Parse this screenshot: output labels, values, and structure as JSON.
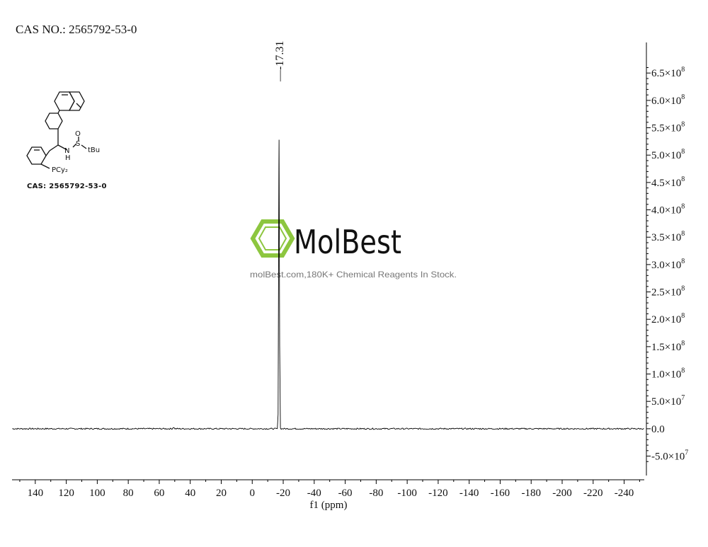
{
  "header": {
    "cas_text": "CAS NO.: 2565792-53-0"
  },
  "structure": {
    "caption": "CAS: 2565792-53-0",
    "labels": {
      "oxygen": "O",
      "sulfur": "S",
      "nh": "N",
      "h": "H",
      "tbu": "tBu",
      "phosphine": "PCy₂"
    }
  },
  "watermark": {
    "brand": "MolBest",
    "tagline": "molBest.com,180K+ Chemical Reagents In Stock.",
    "color": "#8dc63f"
  },
  "chart_data": {
    "type": "line",
    "xlabel": "f1 (ppm)",
    "x_reversed": true,
    "xlim": [
      155,
      -253
    ],
    "x_ticks": [
      140,
      120,
      100,
      80,
      60,
      40,
      20,
      0,
      -20,
      -40,
      -60,
      -80,
      -100,
      -120,
      -140,
      -160,
      -180,
      -200,
      -220,
      -240
    ],
    "ylim": [
      -70000000,
      680000000
    ],
    "y_ticks": [
      {
        "value": 650000000,
        "mantissa": "6.5",
        "exp": "8"
      },
      {
        "value": 600000000,
        "mantissa": "6.0",
        "exp": "8"
      },
      {
        "value": 550000000,
        "mantissa": "5.5",
        "exp": "8"
      },
      {
        "value": 500000000,
        "mantissa": "5.0",
        "exp": "8"
      },
      {
        "value": 450000000,
        "mantissa": "4.5",
        "exp": "8"
      },
      {
        "value": 400000000,
        "mantissa": "4.0",
        "exp": "8"
      },
      {
        "value": 350000000,
        "mantissa": "3.5",
        "exp": "8"
      },
      {
        "value": 300000000,
        "mantissa": "3.0",
        "exp": "8"
      },
      {
        "value": 250000000,
        "mantissa": "2.5",
        "exp": "8"
      },
      {
        "value": 200000000,
        "mantissa": "2.0",
        "exp": "8"
      },
      {
        "value": 150000000,
        "mantissa": "1.5",
        "exp": "8"
      },
      {
        "value": 100000000,
        "mantissa": "1.0",
        "exp": "8"
      },
      {
        "value": 50000000,
        "mantissa": "5.0",
        "exp": "7"
      },
      {
        "value": 0,
        "mantissa": "0.0",
        "exp": ""
      },
      {
        "value": -50000000,
        "mantissa": "-5.0",
        "exp": "7"
      }
    ],
    "y_axis_position": "right",
    "peaks": [
      {
        "x": -17.31,
        "y": 528000000,
        "label": "-17.31"
      }
    ],
    "minor_features": [
      {
        "x": 50.8,
        "y": 3000000
      }
    ],
    "baseline": 0,
    "line_color": "#000000"
  }
}
